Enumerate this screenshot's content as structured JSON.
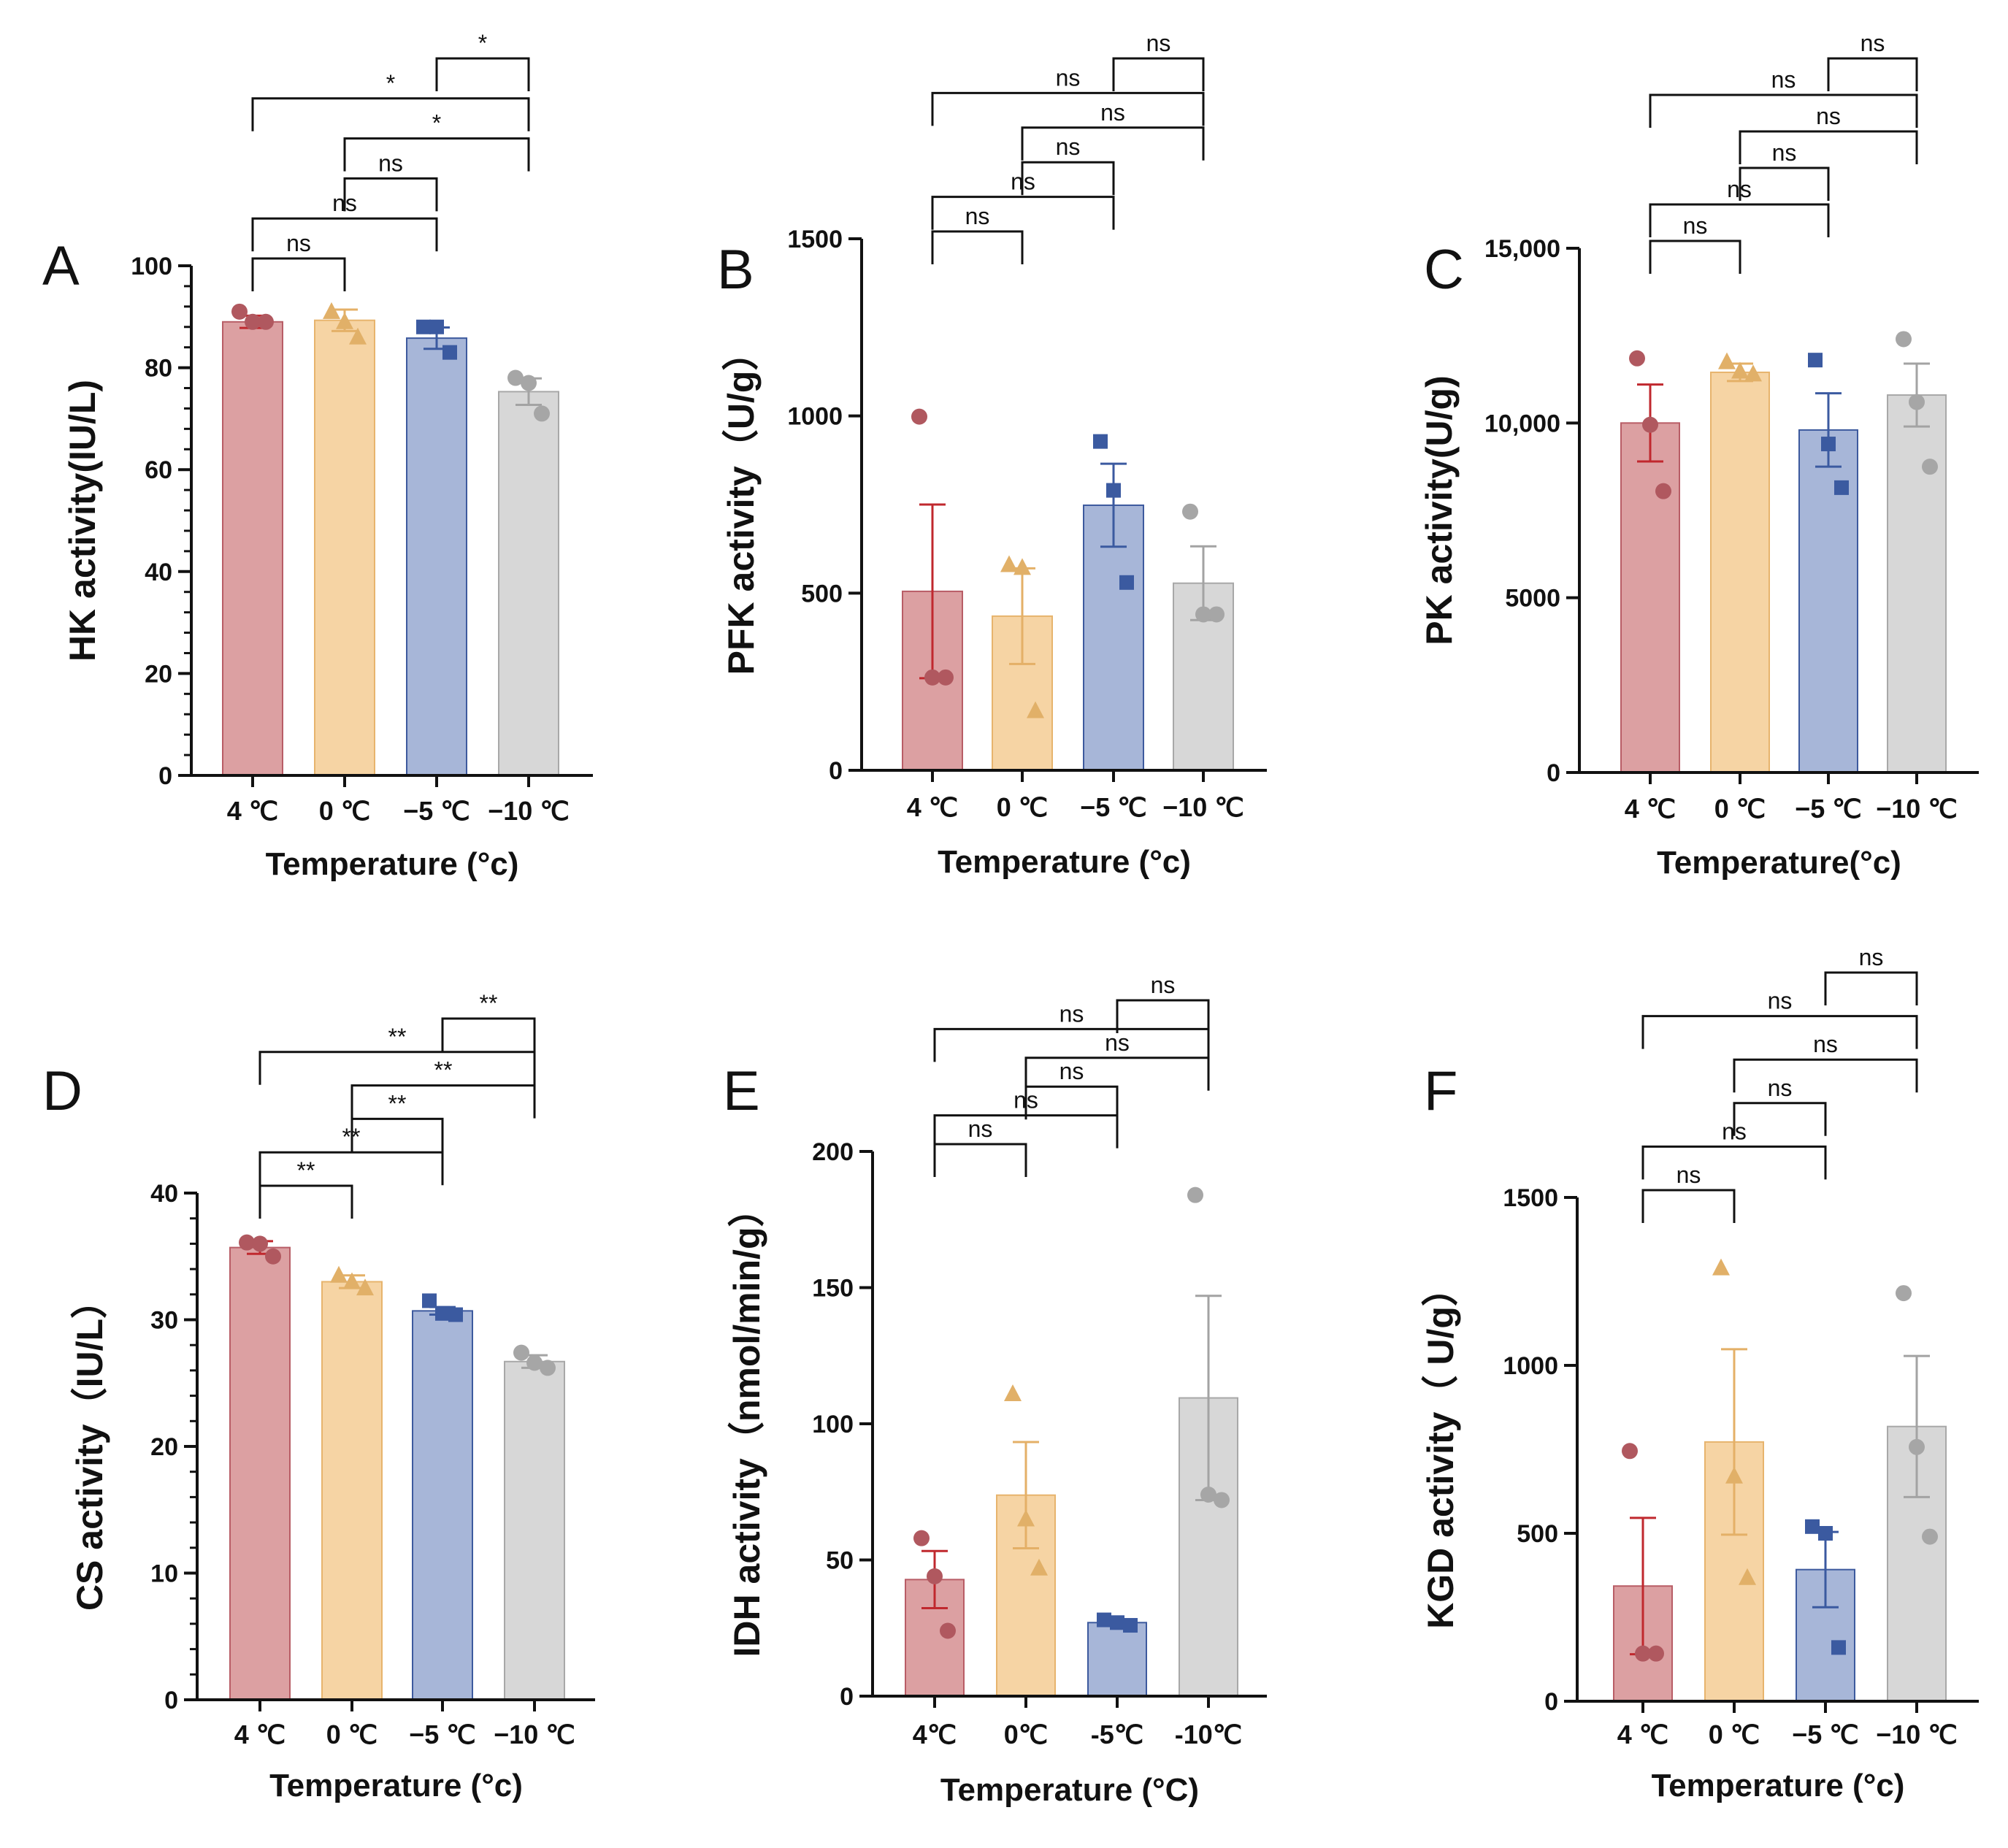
{
  "palette": {
    "fill": [
      "#dca0a2",
      "#f6d4a4",
      "#a7b6d8",
      "#d7d7d7"
    ],
    "edge": [
      "#b85d66",
      "#e7b46d",
      "#3d5a9e",
      "#a8a8a8"
    ],
    "point": [
      "#b0585f",
      "#e1b068",
      "#3b5aa0",
      "#a6a6a6"
    ],
    "err": [
      "#c0282e",
      "#e4b067",
      "#3b5aa0",
      "#a3a3a3"
    ],
    "markers": [
      "circle",
      "triangle",
      "square",
      "circle"
    ]
  },
  "chart_data": [
    {
      "panel": "A",
      "type": "bar",
      "categories": [
        "4 ℃",
        "0 ℃",
        "−5 ℃",
        "−10 ℃"
      ],
      "values": [
        89,
        89.3,
        85.8,
        75.3
      ],
      "sem": [
        1.2,
        2.1,
        2.1,
        2.6
      ],
      "points": [
        [
          91,
          89,
          89
        ],
        [
          91,
          89,
          86
        ],
        [
          88,
          88,
          83
        ],
        [
          78,
          77,
          71
        ]
      ],
      "ylabel": "HK activity(IU/L)",
      "xlabel": "Temperature (°c)",
      "ylim": [
        0,
        100
      ],
      "yticks": [
        {
          "v": 0,
          "t": "0"
        },
        {
          "v": 20,
          "t": "20"
        },
        {
          "v": 40,
          "t": "40"
        },
        {
          "v": 60,
          "t": "60"
        },
        {
          "v": 80,
          "t": "80"
        },
        {
          "v": 100,
          "t": "100"
        }
      ],
      "minor_ticks": 4,
      "comparisons": [
        {
          "a": 0,
          "b": 1,
          "label": "ns"
        },
        {
          "a": 0,
          "b": 2,
          "label": "ns"
        },
        {
          "a": 1,
          "b": 2,
          "label": "ns"
        },
        {
          "a": 1,
          "b": 3,
          "label": "*"
        },
        {
          "a": 0,
          "b": 3,
          "label": "*"
        },
        {
          "a": 2,
          "b": 3,
          "label": "*"
        }
      ]
    },
    {
      "panel": "B",
      "type": "bar",
      "categories": [
        "4 ℃",
        "0 ℃",
        "−5 ℃",
        "−10 ℃"
      ],
      "values": [
        505,
        435,
        748,
        528
      ],
      "sem": [
        245,
        135,
        117,
        104
      ],
      "points": [
        [
          998,
          262,
          262
        ],
        [
          580,
          572,
          168
        ],
        [
          928,
          790,
          530
        ],
        [
          730,
          440,
          440
        ]
      ],
      "ylabel": "PFK activity（U/g）",
      "xlabel": "Temperature (°c)",
      "ylim": [
        0,
        1500
      ],
      "yticks": [
        {
          "v": 0,
          "t": "0"
        },
        {
          "v": 500,
          "t": "500"
        },
        {
          "v": 1000,
          "t": "1000"
        },
        {
          "v": 1500,
          "t": "1500"
        }
      ],
      "minor_ticks": 0,
      "comparisons": [
        {
          "a": 0,
          "b": 1,
          "label": "ns"
        },
        {
          "a": 0,
          "b": 2,
          "label": "ns"
        },
        {
          "a": 1,
          "b": 2,
          "label": "ns"
        },
        {
          "a": 1,
          "b": 3,
          "label": "ns"
        },
        {
          "a": 0,
          "b": 3,
          "label": "ns"
        },
        {
          "a": 2,
          "b": 3,
          "label": "ns"
        }
      ]
    },
    {
      "panel": "C",
      "type": "bar",
      "categories": [
        "4 ℃",
        "0 ℃",
        "−5 ℃",
        "−10 ℃"
      ],
      "values": [
        10000,
        11450,
        9800,
        10800
      ],
      "sem": [
        1100,
        250,
        1050,
        900
      ],
      "points": [
        [
          11850,
          9950,
          8050
        ],
        [
          11750,
          11480,
          11400
        ],
        [
          11800,
          9400,
          8150
        ],
        [
          12400,
          10600,
          8750
        ]
      ],
      "ylabel": "PK activity(U/g)",
      "xlabel": "Temperature(°c)",
      "ylim": [
        0,
        15000
      ],
      "yticks": [
        {
          "v": 0,
          "t": "0"
        },
        {
          "v": 5000,
          "t": "5000"
        },
        {
          "v": 10000,
          "t": "10,000"
        },
        {
          "v": 15000,
          "t": "15,000"
        }
      ],
      "minor_ticks": 0,
      "comparisons": [
        {
          "a": 0,
          "b": 1,
          "label": "ns"
        },
        {
          "a": 0,
          "b": 2,
          "label": "ns"
        },
        {
          "a": 1,
          "b": 2,
          "label": "ns"
        },
        {
          "a": 1,
          "b": 3,
          "label": "ns"
        },
        {
          "a": 0,
          "b": 3,
          "label": "ns"
        },
        {
          "a": 2,
          "b": 3,
          "label": "ns"
        }
      ]
    },
    {
      "panel": "D",
      "type": "bar",
      "categories": [
        "4 ℃",
        "0 ℃",
        "−5 ℃",
        "−10 ℃"
      ],
      "values": [
        35.7,
        33.0,
        30.7,
        26.7
      ],
      "sem": [
        0.5,
        0.5,
        0.3,
        0.5
      ],
      "points": [
        [
          36.1,
          36.0,
          35.0
        ],
        [
          33.5,
          33.0,
          32.5
        ],
        [
          31.5,
          30.5,
          30.4
        ],
        [
          27.4,
          26.6,
          26.2
        ]
      ],
      "ylabel": "CS activity（IU/L）",
      "xlabel": "Temperature (°c)",
      "ylim": [
        0,
        40
      ],
      "yticks": [
        {
          "v": 0,
          "t": "0"
        },
        {
          "v": 10,
          "t": "10"
        },
        {
          "v": 20,
          "t": "20"
        },
        {
          "v": 30,
          "t": "30"
        },
        {
          "v": 40,
          "t": "40"
        }
      ],
      "minor_ticks": 4,
      "comparisons": [
        {
          "a": 0,
          "b": 1,
          "label": "**"
        },
        {
          "a": 0,
          "b": 2,
          "label": "**"
        },
        {
          "a": 1,
          "b": 2,
          "label": "**"
        },
        {
          "a": 1,
          "b": 3,
          "label": "**"
        },
        {
          "a": 0,
          "b": 3,
          "label": "**"
        },
        {
          "a": 2,
          "b": 3,
          "label": "**"
        }
      ]
    },
    {
      "panel": "E",
      "type": "bar",
      "categories": [
        "4℃",
        "0℃",
        "-5℃",
        "-10℃"
      ],
      "values": [
        42.8,
        73.8,
        27.0,
        109.5
      ],
      "sem": [
        10.5,
        19.5,
        0.8,
        37.5
      ],
      "points": [
        [
          58,
          44,
          24
        ],
        [
          111,
          65,
          47
        ],
        [
          28,
          27,
          26
        ],
        [
          184,
          74,
          72
        ]
      ],
      "ylabel": "IDH activity（nmol/min/g）",
      "xlabel": "Temperature (°C)",
      "ylim": [
        0,
        200
      ],
      "yticks": [
        {
          "v": 0,
          "t": "0"
        },
        {
          "v": 50,
          "t": "50"
        },
        {
          "v": 100,
          "t": "100"
        },
        {
          "v": 150,
          "t": "150"
        },
        {
          "v": 200,
          "t": "200"
        }
      ],
      "minor_ticks": 0,
      "comparisons": [
        {
          "a": 0,
          "b": 1,
          "label": "ns"
        },
        {
          "a": 0,
          "b": 2,
          "label": "ns"
        },
        {
          "a": 1,
          "b": 2,
          "label": "ns"
        },
        {
          "a": 1,
          "b": 3,
          "label": "ns"
        },
        {
          "a": 0,
          "b": 3,
          "label": "ns"
        },
        {
          "a": 2,
          "b": 3,
          "label": "ns"
        }
      ]
    },
    {
      "panel": "F",
      "type": "bar",
      "categories": [
        "4 ℃",
        "0 ℃",
        "−5 ℃",
        "−10 ℃"
      ],
      "values": [
        343,
        772,
        392,
        818
      ],
      "sem": [
        203,
        276,
        112,
        210
      ],
      "points": [
        [
          745,
          142,
          142
        ],
        [
          1290,
          670,
          368
        ],
        [
          520,
          500,
          160
        ],
        [
          1215,
          757,
          490
        ]
      ],
      "ylabel": "KGD activity（ U/g）",
      "xlabel": "Temperature (°c)",
      "ylim": [
        0,
        1500
      ],
      "yticks": [
        {
          "v": 0,
          "t": "0"
        },
        {
          "v": 500,
          "t": "500"
        },
        {
          "v": 1000,
          "t": "1000"
        },
        {
          "v": 1500,
          "t": "1500"
        }
      ],
      "minor_ticks": 0,
      "comparisons": [
        {
          "a": 0,
          "b": 1,
          "label": "ns"
        },
        {
          "a": 0,
          "b": 2,
          "label": "ns"
        },
        {
          "a": 1,
          "b": 2,
          "label": "ns"
        },
        {
          "a": 1,
          "b": 3,
          "label": "ns"
        },
        {
          "a": 0,
          "b": 3,
          "label": "ns"
        },
        {
          "a": 2,
          "b": 3,
          "label": "ns"
        }
      ]
    }
  ]
}
